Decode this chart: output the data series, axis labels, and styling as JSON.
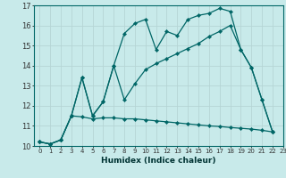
{
  "xlabel": "Humidex (Indice chaleur)",
  "bg_color": "#c8eaea",
  "grid_color": "#b0d8d8",
  "line_color": "#006666",
  "xlim": [
    -0.5,
    23
  ],
  "ylim": [
    10,
    17
  ],
  "xticks": [
    0,
    1,
    2,
    3,
    4,
    5,
    6,
    7,
    8,
    9,
    10,
    11,
    12,
    13,
    14,
    15,
    16,
    17,
    18,
    19,
    20,
    21,
    22,
    23
  ],
  "yticks": [
    10,
    11,
    12,
    13,
    14,
    15,
    16,
    17
  ],
  "line1_x": [
    0,
    1,
    2,
    3,
    4,
    5,
    6,
    7,
    8,
    9,
    10,
    11,
    12,
    13,
    14,
    15,
    16,
    17,
    18,
    19,
    20,
    21,
    22
  ],
  "line1_y": [
    10.2,
    10.1,
    10.3,
    11.5,
    13.4,
    11.5,
    12.2,
    14.0,
    15.6,
    16.1,
    16.3,
    14.8,
    15.7,
    15.5,
    16.3,
    16.5,
    16.6,
    16.85,
    16.7,
    14.8,
    13.9,
    12.3,
    10.7
  ],
  "line2_x": [
    0,
    1,
    2,
    3,
    4,
    5,
    6,
    7,
    8,
    9,
    10,
    11,
    12,
    13,
    14,
    15,
    16,
    17,
    18,
    19,
    20,
    21,
    22
  ],
  "line2_y": [
    10.2,
    10.1,
    10.3,
    11.5,
    11.45,
    11.35,
    11.4,
    11.4,
    11.35,
    11.35,
    11.3,
    11.25,
    11.2,
    11.15,
    11.1,
    11.05,
    11.0,
    10.97,
    10.92,
    10.88,
    10.84,
    10.78,
    10.7
  ],
  "line3_x": [
    0,
    1,
    2,
    3,
    4,
    5,
    6,
    7,
    8,
    9,
    10,
    11,
    12,
    13,
    14,
    15,
    16,
    17,
    18,
    19,
    20,
    21,
    22
  ],
  "line3_y": [
    10.2,
    10.1,
    10.3,
    11.5,
    13.4,
    11.5,
    12.2,
    14.0,
    12.3,
    13.1,
    13.8,
    14.1,
    14.35,
    14.6,
    14.85,
    15.1,
    15.45,
    15.7,
    16.0,
    14.8,
    13.9,
    12.3,
    10.7
  ]
}
